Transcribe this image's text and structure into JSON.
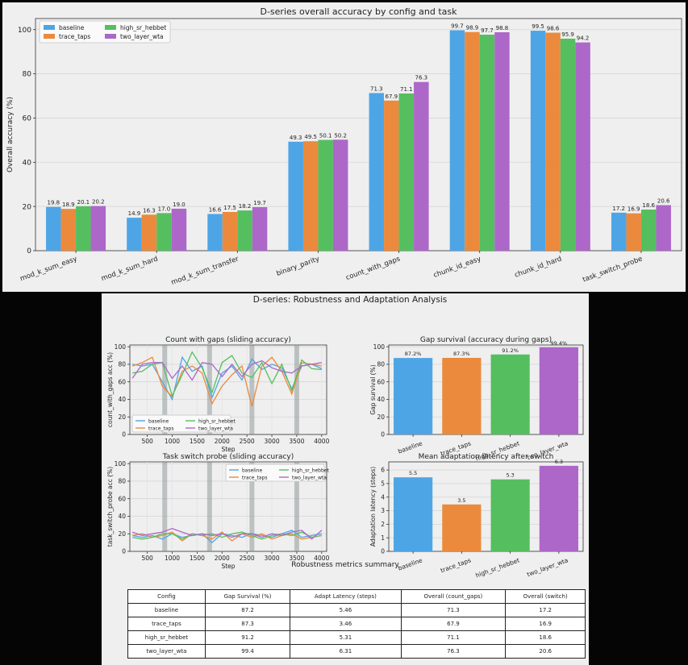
{
  "colors": {
    "baseline": "#4ea5e6",
    "trace_taps": "#eb8a3c",
    "high_sr_hebbet": "#55bf60",
    "two_layer_wta": "#ad67c9"
  },
  "chart_data": [
    {
      "type": "bar",
      "title": "D-series overall accuracy by config and task",
      "ylabel": "Overall accuracy (%)",
      "xlabel": "",
      "ylim": [
        0,
        105
      ],
      "yticks": [
        0,
        20,
        40,
        60,
        80,
        100
      ],
      "legend": "top-left",
      "categories": [
        "mod_k_sum_easy",
        "mod_k_sum_hard",
        "mod_k_sum_transfer",
        "binary_parity",
        "count_with_gaps",
        "chunk_id_easy",
        "chunk_id_hard",
        "task_switch_probe"
      ],
      "series": [
        {
          "name": "baseline",
          "values": [
            19.8,
            14.9,
            16.6,
            49.3,
            71.3,
            99.7,
            99.5,
            17.2
          ]
        },
        {
          "name": "trace_taps",
          "values": [
            18.9,
            16.3,
            17.5,
            49.5,
            67.9,
            98.9,
            98.6,
            16.9
          ]
        },
        {
          "name": "high_sr_hebbet",
          "values": [
            20.1,
            17.0,
            18.2,
            50.1,
            71.1,
            97.7,
            95.9,
            18.6
          ]
        },
        {
          "name": "two_layer_wta",
          "values": [
            20.2,
            19.0,
            19.7,
            50.2,
            76.3,
            98.8,
            94.2,
            20.6
          ]
        }
      ]
    },
    {
      "type": "line",
      "title": "Count with gaps (sliding accuracy)",
      "xlabel": "Step",
      "ylabel": "count_with_gaps acc (%)",
      "xlim": [
        150,
        4100
      ],
      "ylim": [
        0,
        102
      ],
      "xticks": [
        500,
        1000,
        1500,
        2000,
        2500,
        3000,
        3500,
        4000
      ],
      "yticks": [
        0,
        20,
        40,
        60,
        80,
        100
      ],
      "gap_regions": [
        850,
        1750,
        2600,
        3500
      ],
      "legend": "bottom-left",
      "x": [
        200,
        400,
        600,
        800,
        1000,
        1200,
        1400,
        1600,
        1800,
        2000,
        2200,
        2400,
        2600,
        2800,
        3000,
        3200,
        3400,
        3600,
        3800,
        4000
      ],
      "series": [
        {
          "name": "baseline",
          "values": [
            80,
            78,
            80,
            60,
            40,
            88,
            72,
            78,
            42,
            70,
            78,
            62,
            86,
            74,
            80,
            76,
            52,
            78,
            80,
            75
          ]
        },
        {
          "name": "trace_taps",
          "values": [
            78,
            82,
            88,
            55,
            43,
            72,
            78,
            70,
            35,
            55,
            68,
            78,
            32,
            78,
            88,
            72,
            46,
            82,
            80,
            78
          ]
        },
        {
          "name": "high_sr_hebbet",
          "values": [
            70,
            72,
            80,
            82,
            44,
            68,
            94,
            76,
            48,
            82,
            90,
            70,
            65,
            82,
            58,
            80,
            50,
            85,
            75,
            74
          ]
        },
        {
          "name": "two_layer_wta",
          "values": [
            64,
            80,
            82,
            82,
            64,
            78,
            62,
            82,
            80,
            66,
            80,
            66,
            80,
            84,
            76,
            72,
            70,
            78,
            80,
            82
          ]
        }
      ]
    },
    {
      "type": "bar",
      "title": "Gap survival (accuracy during gaps)",
      "ylabel": "Gap survival (%)",
      "xlabel": "",
      "ylim": [
        0,
        102
      ],
      "yticks": [
        0,
        20,
        40,
        60,
        80,
        100
      ],
      "categories": [
        "baseline",
        "trace_taps",
        "high_sr_hebbet",
        "two_layer_wta"
      ],
      "values": [
        87.2,
        87.3,
        91.2,
        99.4
      ],
      "labels": [
        "87.2%",
        "87.3%",
        "91.2%",
        "99.4%"
      ]
    },
    {
      "type": "line",
      "title": "Task switch probe (sliding accuracy)",
      "xlabel": "Step",
      "ylabel": "task_switch_probe acc (%)",
      "xlim": [
        150,
        4100
      ],
      "ylim": [
        0,
        102
      ],
      "xticks": [
        500,
        1000,
        1500,
        2000,
        2500,
        3000,
        3500,
        4000
      ],
      "yticks": [
        0,
        20,
        40,
        60,
        80,
        100
      ],
      "gap_regions": [
        850,
        1750,
        2600,
        3500
      ],
      "legend": "top-right",
      "x": [
        200,
        400,
        600,
        800,
        1000,
        1200,
        1400,
        1600,
        1800,
        2000,
        2200,
        2400,
        2600,
        2800,
        3000,
        3200,
        3400,
        3600,
        3800,
        4000
      ],
      "series": [
        {
          "name": "baseline",
          "values": [
            18,
            16,
            18,
            14,
            20,
            16,
            18,
            20,
            10,
            20,
            18,
            16,
            20,
            18,
            16,
            20,
            24,
            16,
            18,
            20
          ]
        },
        {
          "name": "trace_taps",
          "values": [
            18,
            20,
            16,
            18,
            22,
            12,
            20,
            18,
            14,
            22,
            12,
            20,
            16,
            20,
            14,
            18,
            20,
            14,
            16,
            18
          ]
        },
        {
          "name": "high_sr_hebbet",
          "values": [
            16,
            14,
            16,
            20,
            20,
            14,
            20,
            18,
            20,
            16,
            20,
            22,
            18,
            14,
            18,
            20,
            18,
            22,
            16,
            18
          ]
        },
        {
          "name": "two_layer_wta",
          "values": [
            22,
            18,
            20,
            22,
            26,
            22,
            18,
            20,
            18,
            20,
            16,
            20,
            20,
            16,
            20,
            18,
            22,
            24,
            14,
            24
          ]
        }
      ]
    },
    {
      "type": "bar",
      "title": "Mean adaptation latency after switch",
      "ylabel": "Adaptation latency (steps)",
      "xlabel": "",
      "ylim": [
        0,
        6.6
      ],
      "yticks": [
        0,
        1,
        2,
        3,
        4,
        5,
        6
      ],
      "categories": [
        "baseline",
        "trace_taps",
        "high_sr_hebbet",
        "two_layer_wta"
      ],
      "values": [
        5.46,
        3.46,
        5.31,
        6.31
      ],
      "labels": [
        "5.5",
        "3.5",
        "5.3",
        "6.3"
      ]
    }
  ],
  "figure_title": "D-series: Robustness and Adaptation Analysis",
  "table": {
    "title": "Robustness metrics summary",
    "headers": [
      "Config",
      "Gap Survival (%)",
      "Adapt Latency (steps)",
      "Overall (count_gaps)",
      "Overall (switch)"
    ],
    "rows": [
      [
        "baseline",
        "87.2",
        "5.46",
        "71.3",
        "17.2"
      ],
      [
        "trace_taps",
        "87.3",
        "3.46",
        "67.9",
        "16.9"
      ],
      [
        "high_sr_hebbet",
        "91.2",
        "5.31",
        "71.1",
        "18.6"
      ],
      [
        "two_layer_wta",
        "99.4",
        "6.31",
        "76.3",
        "20.6"
      ]
    ]
  }
}
